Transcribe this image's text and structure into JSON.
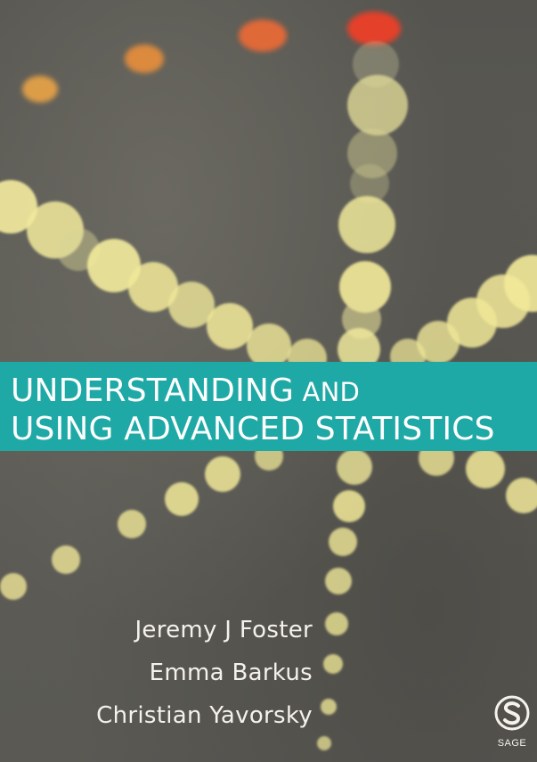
{
  "book": {
    "title_line1_main": "UNDERSTANDING",
    "title_line1_small": " AND",
    "title_line2": "USING ADVANCED STATISTICS",
    "authors": [
      "Jeremy J Foster",
      "Emma Barkus",
      "Christian Yavorsky"
    ],
    "publisher": "SAGE"
  },
  "colors": {
    "title_band": "#1fa9a6",
    "light_yellow": "#f4ec98",
    "light_red": "#f0502e",
    "light_orange": "#f39a40"
  },
  "icons": {
    "publisher_logo": "sage-s-logo-icon",
    "background": "bokeh-lights-image"
  }
}
